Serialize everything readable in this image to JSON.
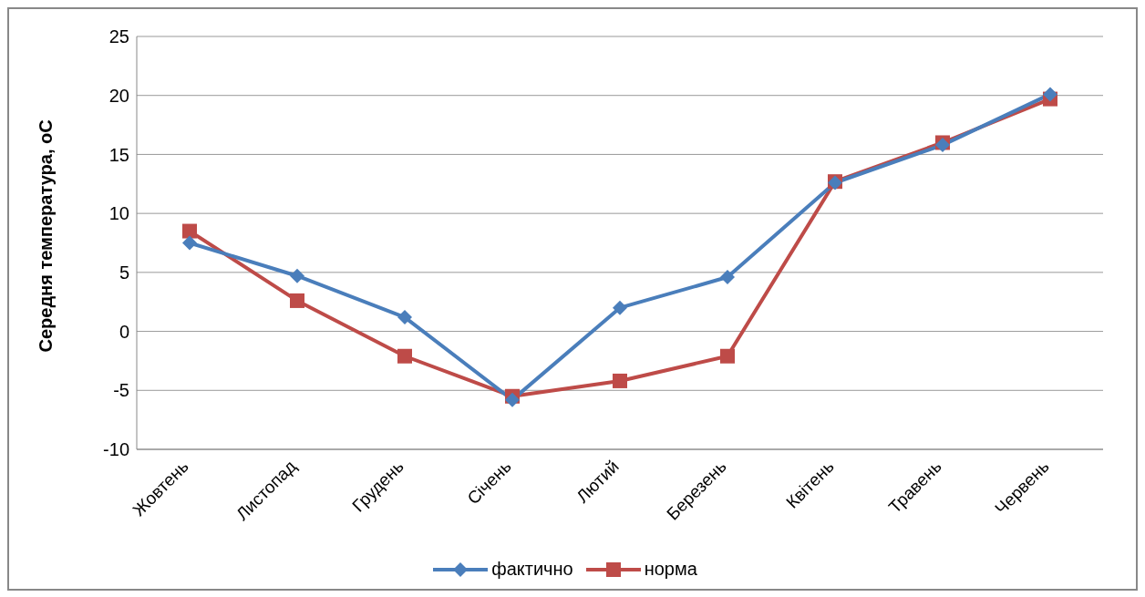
{
  "chart_data": {
    "type": "line",
    "ylabel": "Середня температура, оС",
    "categories": [
      "Жовтень",
      "Листопад",
      "Грудень",
      "Січень",
      "Лютий",
      "Березень",
      "Квітень",
      "Травень",
      "Червень"
    ],
    "series": [
      {
        "name": "фактично",
        "color": "#4a7ebb",
        "marker": "diamond",
        "values": [
          7.5,
          4.7,
          1.2,
          -5.8,
          2.0,
          4.6,
          12.6,
          15.8,
          20.1
        ]
      },
      {
        "name": "норма",
        "color": "#be4b48",
        "marker": "square",
        "values": [
          8.5,
          2.6,
          -2.1,
          -5.5,
          -4.2,
          -2.1,
          12.7,
          16.0,
          19.7
        ]
      }
    ],
    "ylim": [
      -10,
      25
    ],
    "yticks": [
      -10,
      -5,
      0,
      5,
      10,
      15,
      20,
      25
    ],
    "grid": "y",
    "legend": "bottom"
  }
}
